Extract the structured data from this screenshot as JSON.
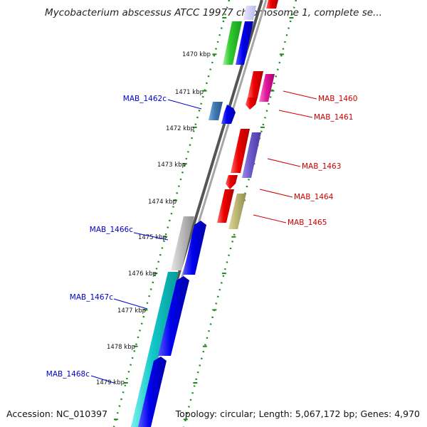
{
  "title": "Mycobacterium abscessus ATCC 19977 chromosome 1, complete se...",
  "footer": {
    "accession": "Accession: NC_010397",
    "topology": "Topology: circular; Length: 5,067,172 bp; Genes: 4,970"
  },
  "colors": {
    "forward_label": "#cc0000",
    "reverse_label": "#0000cc",
    "tick_dots": "#1a8a1a",
    "backbone": "#7a7a7a"
  },
  "ticks": [
    {
      "label": "1470 kbp",
      "kbp": 1470
    },
    {
      "label": "1471 kbp",
      "kbp": 1471
    },
    {
      "label": "1472 kbp",
      "kbp": 1472
    },
    {
      "label": "1473 kbp",
      "kbp": 1473
    },
    {
      "label": "1474 kbp",
      "kbp": 1474
    },
    {
      "label": "1475 kbp",
      "kbp": 1475
    },
    {
      "label": "1476 kbp",
      "kbp": 1476
    },
    {
      "label": "1477 kbp",
      "kbp": 1477
    },
    {
      "label": "1478 kbp",
      "kbp": 1478
    },
    {
      "label": "1479 kbp",
      "kbp": 1479
    }
  ],
  "gene_labels": {
    "forward": [
      "MAB_1460",
      "MAB_1461",
      "MAB_1463",
      "MAB_1464",
      "MAB_1465"
    ],
    "reverse": [
      "MAB_1462c",
      "MAB_1466c",
      "MAB_1467c",
      "MAB_1468c"
    ]
  }
}
